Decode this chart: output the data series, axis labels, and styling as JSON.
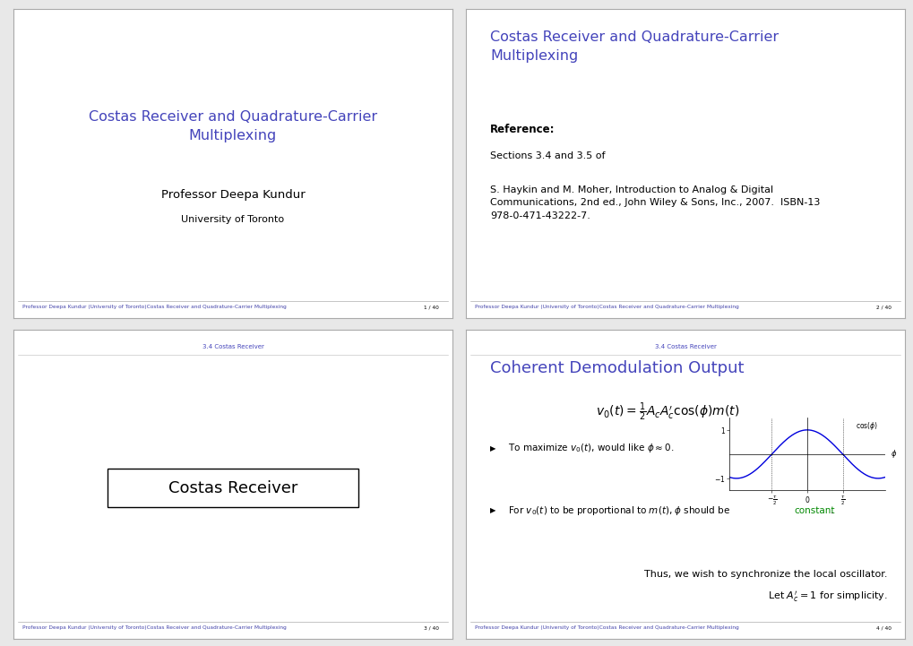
{
  "bg_color": "#e8e8e8",
  "slide_bg": "#ffffff",
  "title_color": "#4444bb",
  "black": "#000000",
  "footer_color": "#4444aa",
  "slide_border_color": "#aaaaaa",
  "green_color": "#008800",
  "blue_text": "#4444bb",
  "slide1": {
    "title": "Costas Receiver and Quadrature-Carrier\nMultiplexing",
    "author": "Professor Deepa Kundur",
    "affil": "University of Toronto",
    "footer": "Professor Deepa Kundur (University of Toronto)Costas Receiver and Quadrature-Carrier Multiplexing",
    "page": "1 / 40"
  },
  "slide2": {
    "title": "Costas Receiver and Quadrature-Carrier\nMultiplexing",
    "ref_header": "Reference:",
    "ref_body1": "Sections 3.4 and 3.5 of",
    "ref_body2": "S. Haykin and M. Moher, Introduction to Analog & Digital\nCommunications, 2nd ed., John Wiley & Sons, Inc., 2007.  ISBN-13\n978-0-471-43222-7.",
    "footer": "Professor Deepa Kundur (University of Toronto)Costas Receiver and Quadrature-Carrier Multiplexing",
    "page": "2 / 40"
  },
  "slide3": {
    "section_header": "3.4 Costas Receiver",
    "box_text": "Costas Receiver",
    "footer": "Professor Deepa Kundur (University of Toronto)Costas Receiver and Quadrature-Carrier Multiplexing",
    "page": "3 / 40"
  },
  "slide4": {
    "section_header": "3.4 Costas Receiver",
    "slide_title": "Coherent Demodulation Output",
    "equation": "$v_0(t) = \\frac{1}{2}A_cA_c'\\cos(\\phi)m(t)$",
    "bullet1_pre": "To maximize ",
    "bullet1_math": "$v_0(t)$",
    "bullet1_post": ", would like ",
    "bullet1_math2": "$\\phi \\approx 0$",
    "bullet1_end": ".",
    "bullet2_pre": "For ",
    "bullet2_m1": "$v_0(t)$",
    "bullet2_mid": " to be proportional to ",
    "bullet2_m2": "$m(t)$",
    "bullet2_post": ", ",
    "bullet2_m3": "$\\phi$",
    "bullet2_end": " should be ",
    "bullet2_color": "constant",
    "cos_label": "$\\cos(\\phi)$",
    "phi_label": "$\\phi$",
    "conclusion1": "Thus, we wish to synchronize the local oscillator.",
    "conclusion2": "Let $A_c' = 1$ for simplicity.",
    "footer": "Professor Deepa Kundur (University of Toronto)Costas Receiver and Quadrature-Carrier Multiplexing",
    "page": "4 / 40"
  }
}
